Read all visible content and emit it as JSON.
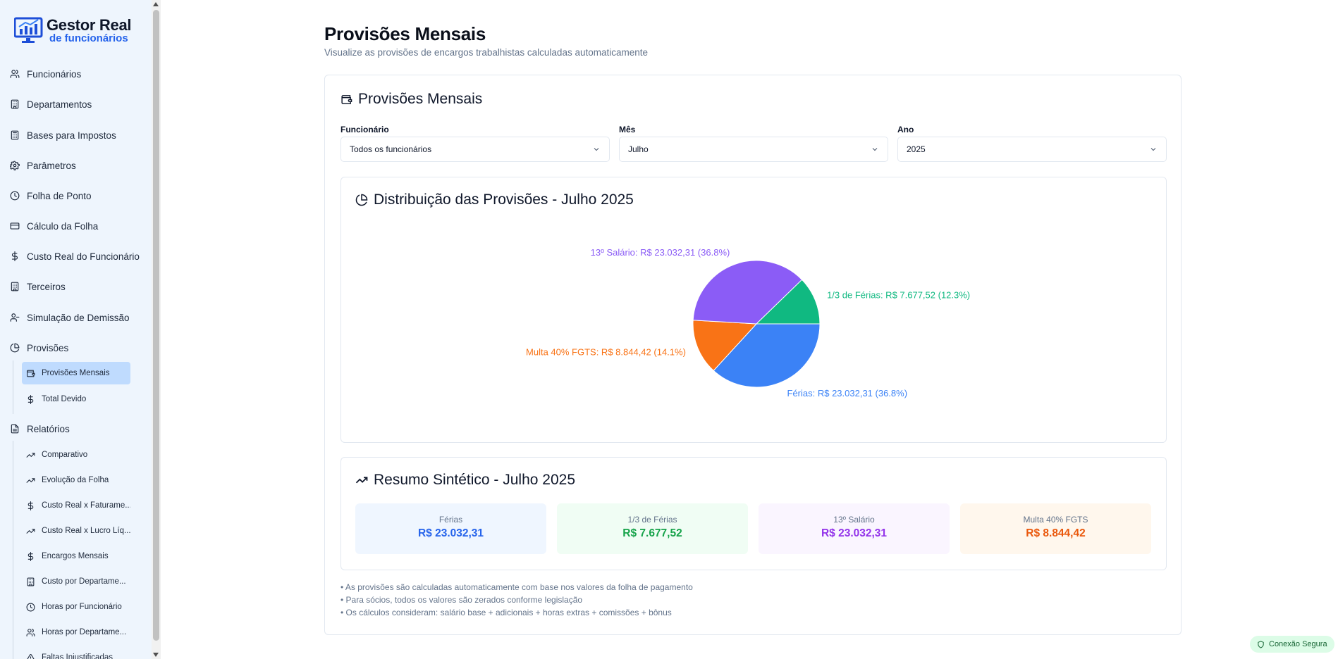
{
  "brand": {
    "line1": "Gestor Real",
    "line2": "de funcionários"
  },
  "sidebar": {
    "items": [
      {
        "label": "Funcionários",
        "icon": "users-icon"
      },
      {
        "label": "Departamentos",
        "icon": "building-icon"
      },
      {
        "label": "Bases para Impostos",
        "icon": "calculator-icon"
      },
      {
        "label": "Parâmetros",
        "icon": "gear-icon"
      },
      {
        "label": "Folha de Ponto",
        "icon": "clock-icon"
      },
      {
        "label": "Cálculo da Folha",
        "icon": "credit-card-icon"
      },
      {
        "label": "Custo Real do Funcionário",
        "icon": "dollar-icon"
      },
      {
        "label": "Terceiros",
        "icon": "building-icon"
      },
      {
        "label": "Simulação de Demissão",
        "icon": "user-minus-icon"
      },
      {
        "label": "Provisões",
        "icon": "pie-icon"
      },
      {
        "label": "Relatórios",
        "icon": "file-icon"
      }
    ],
    "provisoes_sub": [
      {
        "label": "Provisões Mensais",
        "icon": "wallet-icon"
      },
      {
        "label": "Total Devido",
        "icon": "dollar-icon"
      }
    ],
    "relatorios_sub": [
      {
        "label": "Comparativo",
        "icon": "trend-icon"
      },
      {
        "label": "Evolução da Folha",
        "icon": "trend-icon"
      },
      {
        "label": "Custo Real x Faturame...",
        "icon": "dollar-icon"
      },
      {
        "label": "Custo Real x Lucro Líq...",
        "icon": "trend-icon"
      },
      {
        "label": "Encargos Mensais",
        "icon": "dollar-icon"
      },
      {
        "label": "Custo por Departame...",
        "icon": "building-icon"
      },
      {
        "label": "Horas por Funcionário",
        "icon": "clock-icon"
      },
      {
        "label": "Horas por Departame...",
        "icon": "users-icon"
      },
      {
        "label": "Faltas Injustificadas",
        "icon": "alert-icon"
      }
    ]
  },
  "header": {
    "title": "Provisões Mensais",
    "subtitle": "Visualize as provisões de encargos trabalhistas calculadas automaticamente"
  },
  "card": {
    "title": "Provisões Mensais",
    "filters": {
      "funcionario_label": "Funcionário",
      "funcionario_value": "Todos os funcionários",
      "mes_label": "Mês",
      "mes_value": "Julho",
      "ano_label": "Ano",
      "ano_value": "2025"
    }
  },
  "chart_section": {
    "title": "Distribuição das Provisões - Julho 2025"
  },
  "chart_data": {
    "type": "pie",
    "slices": [
      {
        "name": "Férias",
        "value": 23032.31,
        "percent": 36.8,
        "label": "Férias: R$ 23.032,31 (36.8%)",
        "color": "#3b82f6"
      },
      {
        "name": "Multa 40% FGTS",
        "value": 8844.42,
        "percent": 14.1,
        "label": "Multa 40% FGTS: R$ 8.844,42 (14.1%)",
        "color": "#f97316"
      },
      {
        "name": "13º Salário",
        "value": 23032.31,
        "percent": 36.8,
        "label": "13º Salário: R$ 23.032,31 (36.8%)",
        "color": "#8b5cf6"
      },
      {
        "name": "1/3 de Férias",
        "value": 7677.52,
        "percent": 12.3,
        "label": "1/3 de Férias: R$ 7.677,52 (12.3%)",
        "color": "#10b981"
      }
    ]
  },
  "summary": {
    "title": "Resumo Sintético - Julho 2025",
    "tiles": [
      {
        "label": "Férias",
        "value": "R$ 23.032,31",
        "bg": "#eff6ff",
        "color": "#2563eb"
      },
      {
        "label": "1/3 de Férias",
        "value": "R$ 7.677,52",
        "bg": "#f0fdf4",
        "color": "#16a34a"
      },
      {
        "label": "13º Salário",
        "value": "R$ 23.032,31",
        "bg": "#faf5ff",
        "color": "#9333ea"
      },
      {
        "label": "Multa 40% FGTS",
        "value": "R$ 8.844,42",
        "bg": "#fff7ed",
        "color": "#ea580c"
      }
    ]
  },
  "notes": [
    "• As provisões são calculadas automaticamente com base nos valores da folha de pagamento",
    "• Para sócios, todos os valores são zerados conforme legislação",
    "• Os cálculos consideram: salário base + adicionais + horas extras + comissões + bônus"
  ],
  "status": {
    "secure": "Conexão Segura"
  }
}
